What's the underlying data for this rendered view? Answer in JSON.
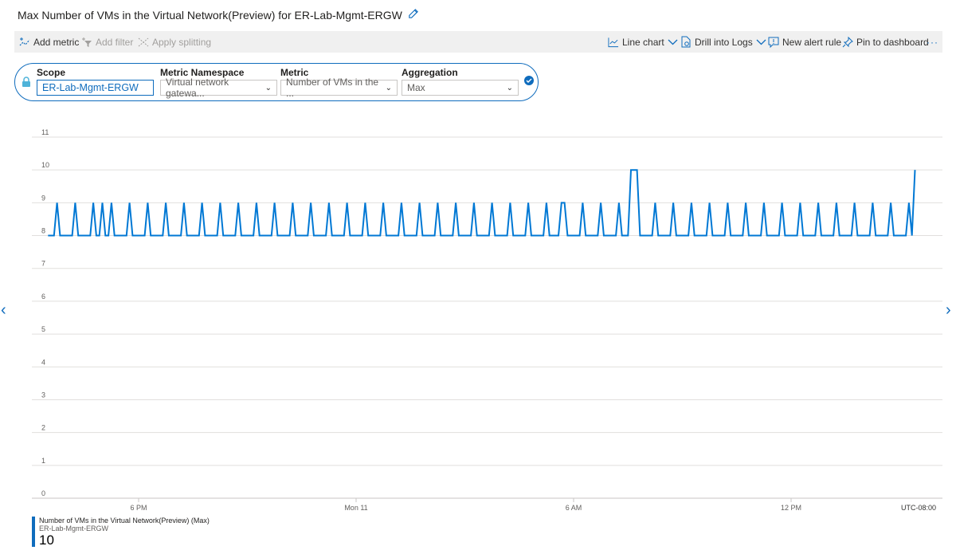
{
  "header": {
    "title": "Max Number of VMs in the Virtual Network(Preview) for ER-Lab-Mgmt-ERGW"
  },
  "toolbar": {
    "add_metric": "Add metric",
    "add_filter": "Add filter",
    "apply_splitting": "Apply splitting",
    "line_chart": "Line chart",
    "drill_logs": "Drill into Logs",
    "new_alert": "New alert rule",
    "pin": "Pin to dashboard",
    "more": "···"
  },
  "scope_bar": {
    "scope_label": "Scope",
    "scope_value": "ER-Lab-Mgmt-ERGW",
    "namespace_label": "Metric Namespace",
    "namespace_value": "Virtual network gatewa...",
    "metric_label": "Metric",
    "metric_value": "Number of VMs in the ...",
    "aggregation_label": "Aggregation",
    "aggregation_value": "Max"
  },
  "colors": {
    "accent": "#0f6cbd",
    "series": "#0078d4"
  },
  "chart_data": {
    "type": "line",
    "title": "",
    "xlabel": "",
    "ylabel": "",
    "ylim": [
      0,
      11
    ],
    "yticks": [
      "0",
      "1",
      "2",
      "3",
      "4",
      "5",
      "6",
      "7",
      "8",
      "9",
      "10",
      "11"
    ],
    "xticks": [
      "6 PM",
      "Mon 11",
      "6 AM",
      "12 PM"
    ],
    "timezone_label": "UTC-08:00",
    "grid": true,
    "x_start": "3:30 PM",
    "interval_minutes": 5,
    "series": [
      {
        "name": "Number of VMs in the Virtual Network(Preview) (Max)",
        "resource": "ER-Lab-Mgmt-ERGW",
        "values": [
          8,
          8,
          8,
          9,
          8,
          8,
          8,
          8,
          8,
          9,
          8,
          8,
          8,
          8,
          8,
          9,
          8,
          8,
          9,
          8,
          8,
          9,
          8,
          8,
          8,
          8,
          8,
          9,
          8,
          8,
          8,
          8,
          8,
          9,
          8,
          8,
          8,
          8,
          8,
          9,
          8,
          8,
          8,
          8,
          8,
          9,
          8,
          8,
          8,
          8,
          8,
          9,
          8,
          8,
          8,
          8,
          8,
          9,
          8,
          8,
          8,
          8,
          8,
          9,
          8,
          8,
          8,
          8,
          8,
          9,
          8,
          8,
          8,
          8,
          8,
          9,
          8,
          8,
          8,
          8,
          8,
          9,
          8,
          8,
          8,
          8,
          8,
          9,
          8,
          8,
          8,
          8,
          8,
          9,
          8,
          8,
          8,
          8,
          8,
          9,
          8,
          8,
          8,
          8,
          8,
          9,
          8,
          8,
          8,
          8,
          8,
          9,
          8,
          8,
          8,
          8,
          8,
          9,
          8,
          8,
          8,
          8,
          8,
          9,
          8,
          8,
          8,
          8,
          8,
          9,
          8,
          8,
          8,
          8,
          8,
          9,
          8,
          8,
          8,
          8,
          8,
          9,
          8,
          8,
          8,
          8,
          8,
          9,
          8,
          8,
          8,
          8,
          8,
          9,
          8,
          8,
          8,
          8,
          8,
          9,
          8,
          8,
          8,
          8,
          8,
          9,
          8,
          8,
          8,
          8,
          9,
          9,
          8,
          8,
          8,
          8,
          8,
          9,
          8,
          8,
          8,
          8,
          8,
          9,
          8,
          8,
          8,
          8,
          8,
          9,
          8,
          8,
          8,
          10,
          10,
          10,
          8,
          8,
          8,
          8,
          8,
          9,
          8,
          8,
          8,
          8,
          8,
          9,
          8,
          8,
          8,
          8,
          8,
          9,
          8,
          8,
          8,
          8,
          8,
          9,
          8,
          8,
          8,
          8,
          8,
          9,
          8,
          8,
          8,
          8,
          8,
          9,
          8,
          8,
          8,
          8,
          8,
          9,
          8,
          8,
          8,
          8,
          8,
          9,
          8,
          8,
          8,
          8,
          8,
          9,
          8,
          8,
          8,
          8,
          8,
          9,
          8,
          8,
          8,
          8,
          8,
          9,
          8,
          8,
          8,
          8,
          8,
          9,
          8,
          8,
          8,
          8,
          8,
          9,
          8,
          8,
          8,
          8,
          8,
          9,
          8,
          8,
          8,
          8,
          8,
          9,
          8,
          10
        ]
      }
    ],
    "legend": {
      "placement": "bottom-left",
      "value": "10"
    }
  }
}
